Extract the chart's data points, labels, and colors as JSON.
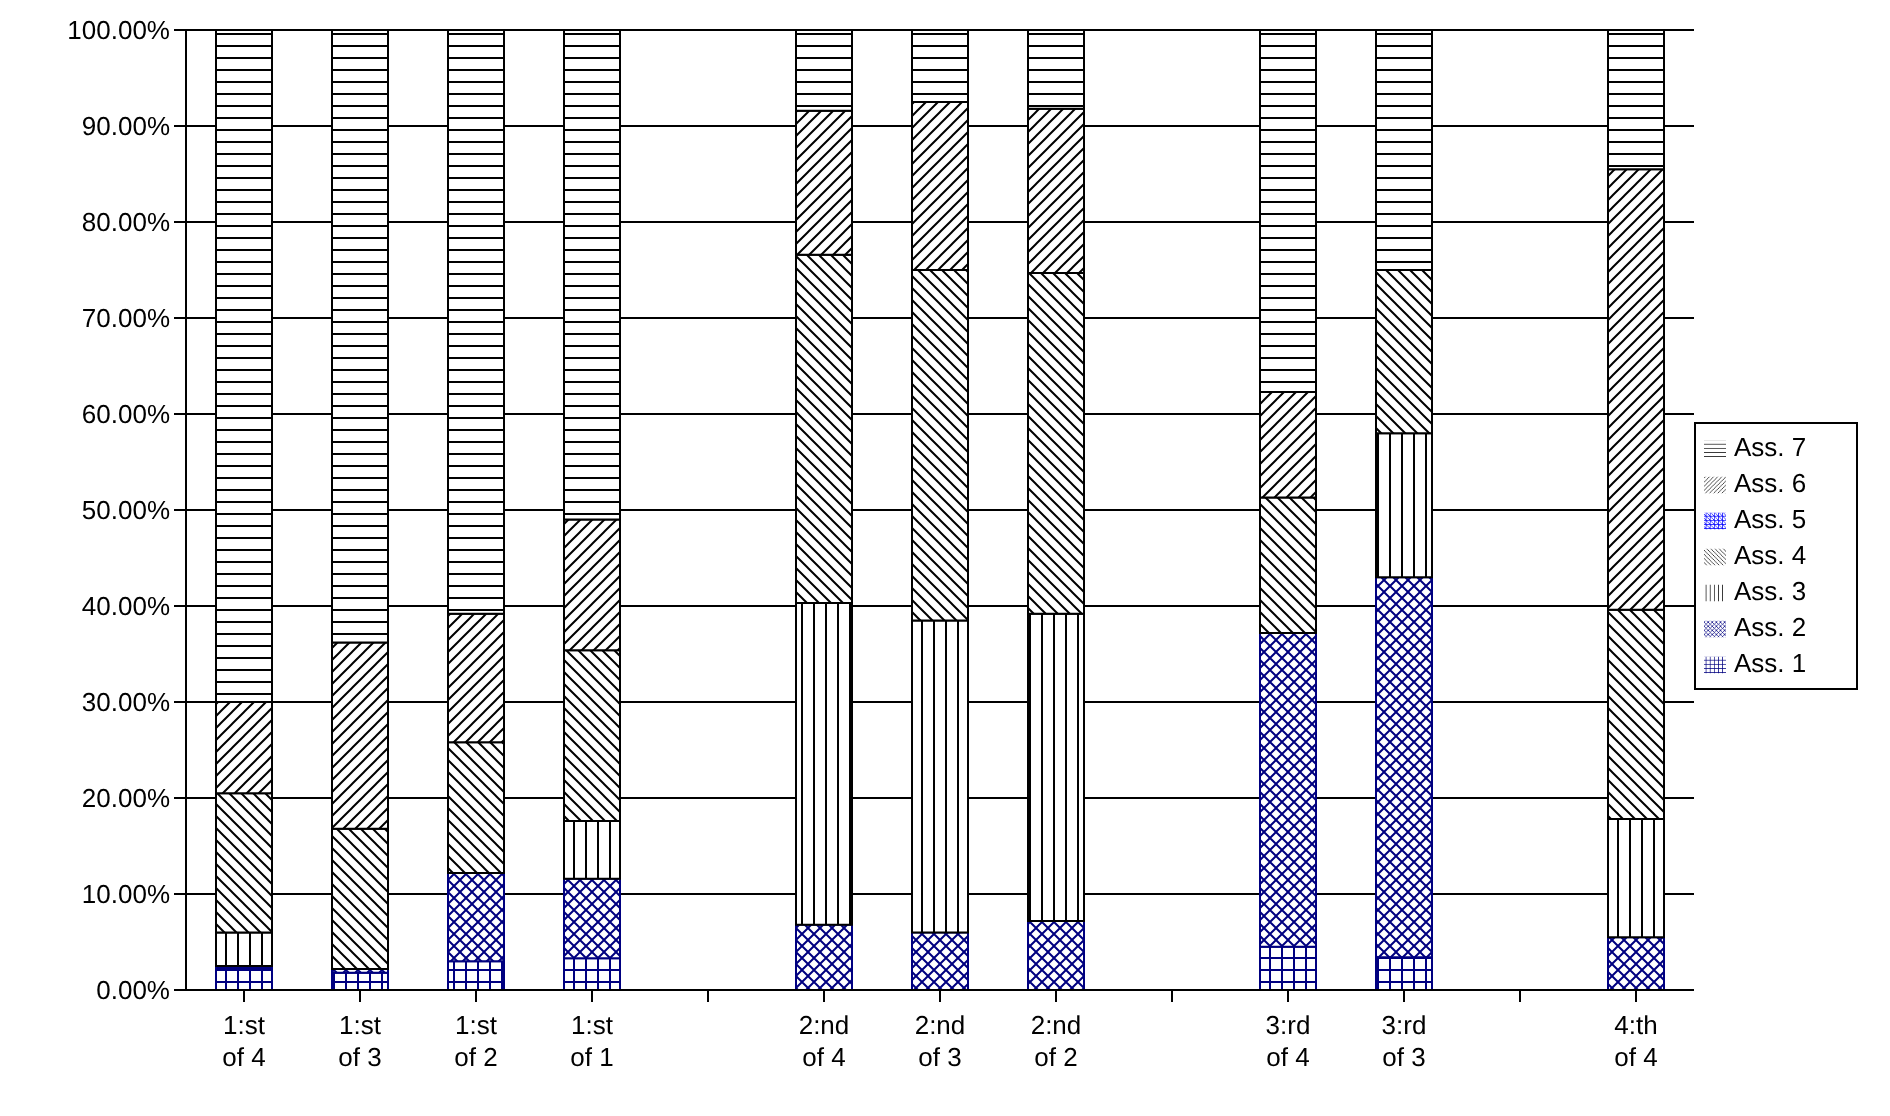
{
  "chart_data": {
    "type": "bar",
    "stacked": true,
    "categories": [
      "1:st of 4",
      "1:st of 3",
      "1:st of 2",
      "1:st of 1",
      null,
      "2:nd of 4",
      "2:nd of 3",
      "2:nd of 2",
      null,
      "3:rd of 4",
      "3:rd of 3",
      null,
      "4:th of 4"
    ],
    "series": [
      {
        "name": "Ass. 1",
        "color": "#000080",
        "values": [
          2.3,
          1.8,
          3,
          3.3,
          null,
          0,
          0,
          0,
          null,
          4.5,
          3.4,
          null,
          0
        ]
      },
      {
        "name": "Ass. 2",
        "color": "#000080",
        "values": [
          0.2,
          0.4,
          9.2,
          8.3,
          null,
          6.8,
          6,
          7.2,
          null,
          32.7,
          39.6,
          null,
          5.5
        ]
      },
      {
        "name": "Ass. 3",
        "color": "#000000",
        "values": [
          3.5,
          0,
          0,
          6,
          null,
          33.5,
          32.5,
          32,
          null,
          0,
          15,
          null,
          12.3
        ]
      },
      {
        "name": "Ass. 4",
        "color": "#000000",
        "values": [
          14.5,
          14.6,
          13.6,
          17.8,
          null,
          36.3,
          36.5,
          35.5,
          null,
          14.1,
          17,
          null,
          21.8
        ]
      },
      {
        "name": "Ass. 5",
        "color": "#0000ff",
        "values": [
          0,
          0,
          0,
          0,
          null,
          0,
          0,
          0,
          null,
          0,
          0,
          null,
          0
        ]
      },
      {
        "name": "Ass. 6",
        "color": "#000000",
        "values": [
          9.5,
          19.4,
          13.4,
          13.6,
          null,
          15,
          17.5,
          17.1,
          null,
          11,
          0,
          null,
          45.9
        ]
      },
      {
        "name": "Ass. 7",
        "color": "#000000",
        "values": [
          70,
          63.8,
          60.8,
          51,
          null,
          8.4,
          7.5,
          8.2,
          null,
          37.7,
          25,
          null,
          14.5
        ]
      }
    ],
    "ylim": [
      0,
      100
    ],
    "yticks": [
      {
        "value": 0,
        "label": "0.00%"
      },
      {
        "value": 10,
        "label": "10.00%"
      },
      {
        "value": 20,
        "label": "20.00%"
      },
      {
        "value": 30,
        "label": "30.00%"
      },
      {
        "value": 40,
        "label": "40.00%"
      },
      {
        "value": 50,
        "label": "50.00%"
      },
      {
        "value": 60,
        "label": "60.00%"
      },
      {
        "value": 70,
        "label": "70.00%"
      },
      {
        "value": 80,
        "label": "80.00%"
      },
      {
        "value": 90,
        "label": "90.00%"
      },
      {
        "value": 100,
        "label": "100.00%"
      }
    ],
    "grid": "y",
    "legend": "right"
  }
}
